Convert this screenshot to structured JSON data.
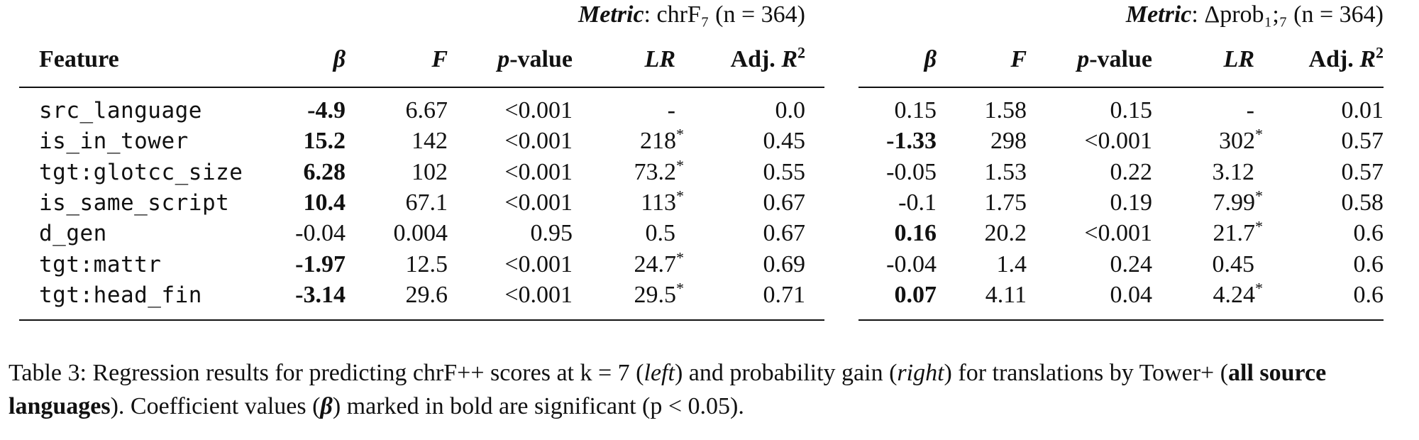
{
  "left_metric": {
    "label": "Metric",
    "rest": ": chrF₇ (n = 364)"
  },
  "right_metric": {
    "label": "Metric",
    "rest": ": Δprob₁;₇ (n = 364)"
  },
  "headers": {
    "feature": "Feature",
    "beta": "β",
    "f": "F",
    "p_prefix": "p",
    "p_suffix": "-value",
    "lr": "LR",
    "adj": "Adj. R",
    "adj_sup": "2"
  },
  "rows": [
    {
      "feature": "src_language",
      "l": {
        "beta": "-4.9",
        "beta_bold": true,
        "f": "6.67",
        "p": "<0.001",
        "lr": "-",
        "lr_star": false,
        "r2": "0.0"
      },
      "r": {
        "beta": "0.15",
        "beta_bold": false,
        "f": "1.58",
        "p": "0.15",
        "lr": "-",
        "lr_star": false,
        "r2": "0.01"
      }
    },
    {
      "feature": "is_in_tower",
      "l": {
        "beta": "15.2",
        "beta_bold": true,
        "f": "142",
        "p": "<0.001",
        "lr": "218",
        "lr_star": true,
        "r2": "0.45"
      },
      "r": {
        "beta": "-1.33",
        "beta_bold": true,
        "f": "298",
        "p": "<0.001",
        "lr": "302",
        "lr_star": true,
        "r2": "0.57"
      }
    },
    {
      "feature": "tgt:glotcc_size",
      "l": {
        "beta": "6.28",
        "beta_bold": true,
        "f": "102",
        "p": "<0.001",
        "lr": "73.2",
        "lr_star": true,
        "r2": "0.55"
      },
      "r": {
        "beta": "-0.05",
        "beta_bold": false,
        "f": "1.53",
        "p": "0.22",
        "lr": "3.12",
        "lr_star": false,
        "r2": "0.57"
      }
    },
    {
      "feature": "is_same_script",
      "l": {
        "beta": "10.4",
        "beta_bold": true,
        "f": "67.1",
        "p": "<0.001",
        "lr": "113",
        "lr_star": true,
        "r2": "0.67"
      },
      "r": {
        "beta": "-0.1",
        "beta_bold": false,
        "f": "1.75",
        "p": "0.19",
        "lr": "7.99",
        "lr_star": true,
        "r2": "0.58"
      }
    },
    {
      "feature": "d_gen",
      "l": {
        "beta": "-0.04",
        "beta_bold": false,
        "f": "0.004",
        "p": "0.95",
        "lr": "0.5",
        "lr_star": false,
        "r2": "0.67"
      },
      "r": {
        "beta": "0.16",
        "beta_bold": true,
        "f": "20.2",
        "p": "<0.001",
        "lr": "21.7",
        "lr_star": true,
        "r2": "0.6"
      }
    },
    {
      "feature": "tgt:mattr",
      "l": {
        "beta": "-1.97",
        "beta_bold": true,
        "f": "12.5",
        "p": "<0.001",
        "lr": "24.7",
        "lr_star": true,
        "r2": "0.69"
      },
      "r": {
        "beta": "-0.04",
        "beta_bold": false,
        "f": "1.4",
        "p": "0.24",
        "lr": "0.45",
        "lr_star": false,
        "r2": "0.6"
      }
    },
    {
      "feature": "tgt:head_fin",
      "l": {
        "beta": "-3.14",
        "beta_bold": true,
        "f": "29.6",
        "p": "<0.001",
        "lr": "29.5",
        "lr_star": true,
        "r2": "0.71"
      },
      "r": {
        "beta": "0.07",
        "beta_bold": true,
        "f": "4.11",
        "p": "0.04",
        "lr": "4.24",
        "lr_star": true,
        "r2": "0.6"
      }
    }
  ],
  "lr_star_symbol": "*",
  "caption": {
    "p1": "Table 3: Regression results for predicting chrF++ scores at k = 7 (",
    "left": "left",
    "p2": ") and probability gain (",
    "right": "right",
    "p3": ") for translations by Tower+ (",
    "bold": "all source languages",
    "p4": "). Coefficient values (",
    "beta": "β",
    "p5": ") marked in bold are significant (p < 0.05)."
  }
}
